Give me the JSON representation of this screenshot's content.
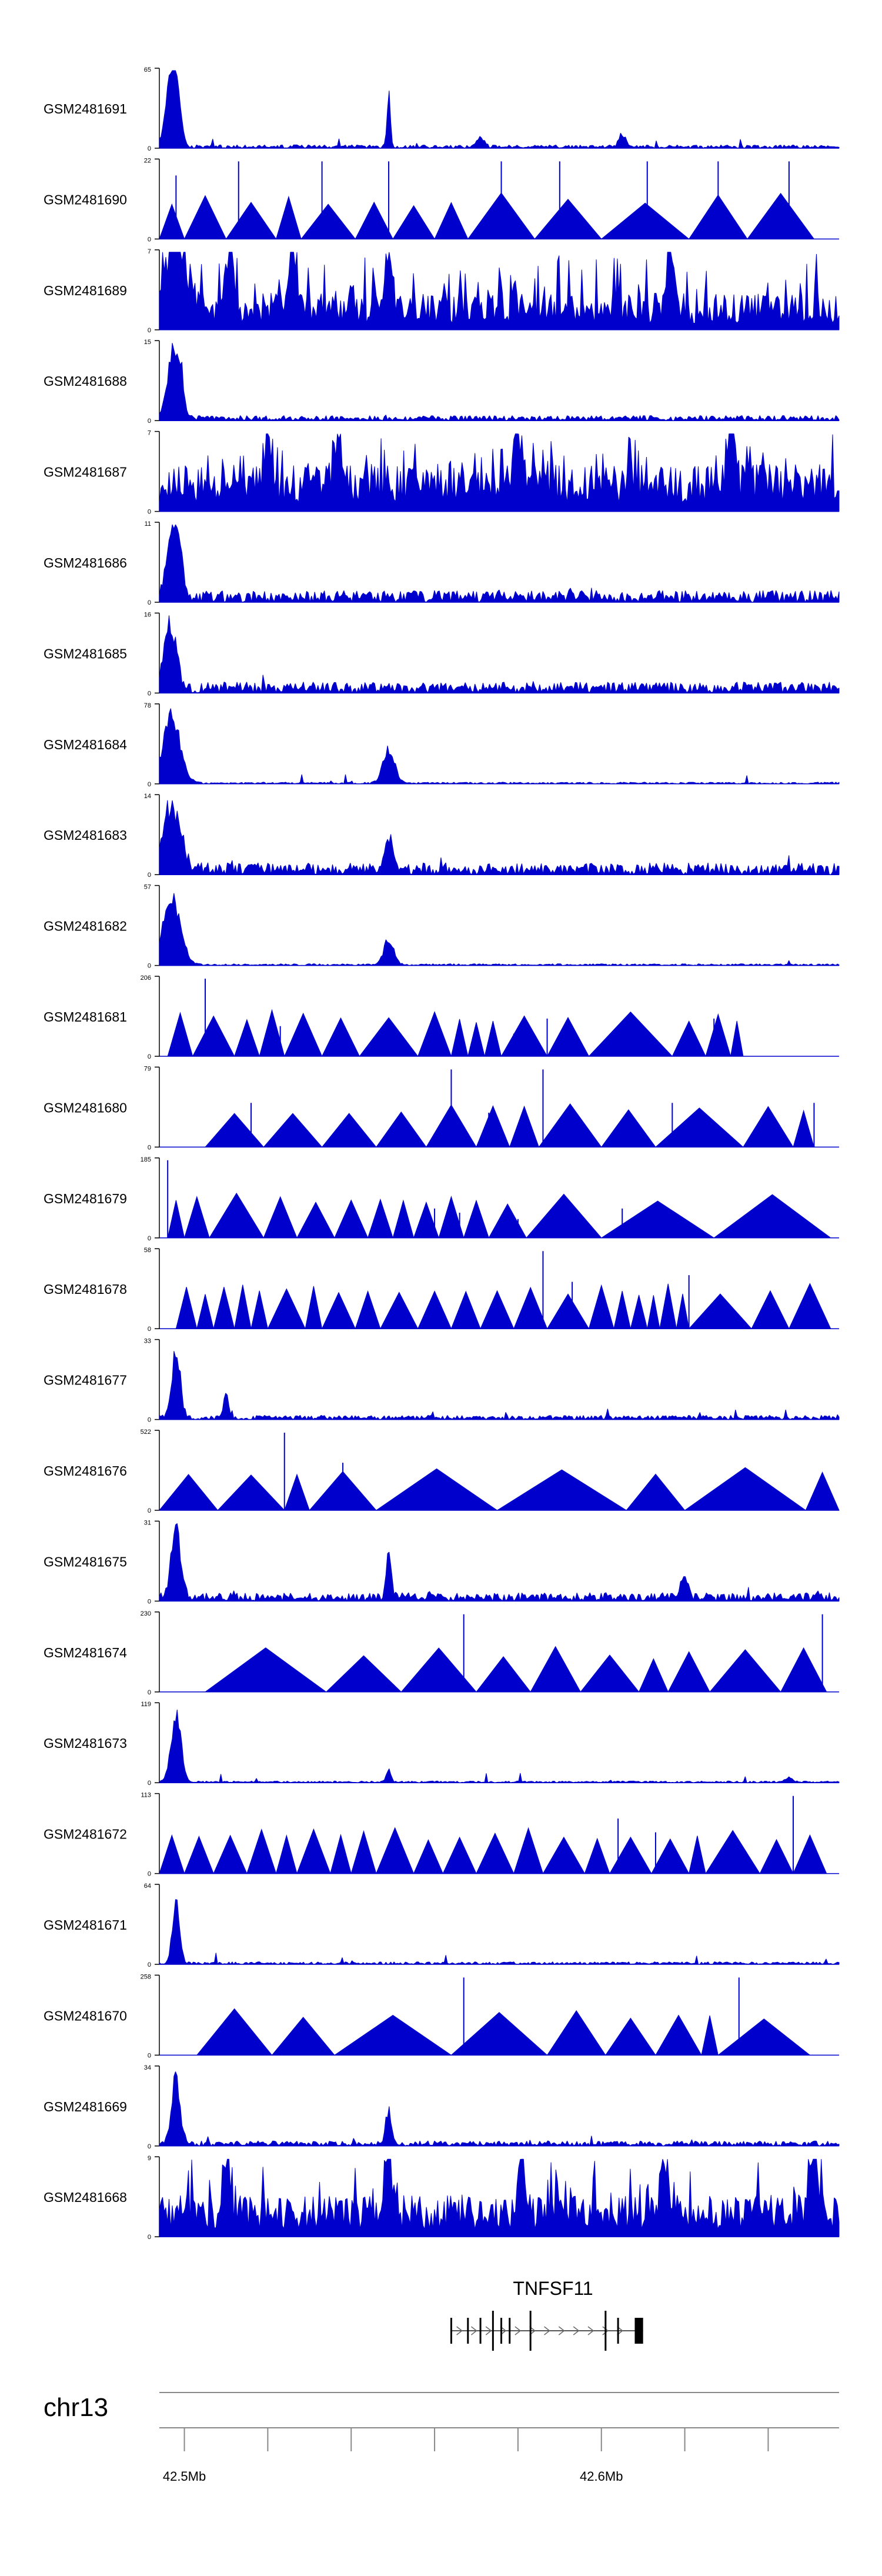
{
  "chart_data": {
    "type": "area",
    "title": "",
    "colors": {
      "signal": "#0000cc",
      "axis": "#000000",
      "ruler": "#888888"
    },
    "chromosome": "chr13",
    "x_axis": {
      "range_mb": [
        42.494,
        42.657
      ],
      "ticks_mb": [
        42.5,
        42.52,
        42.54,
        42.56,
        42.58,
        42.6,
        42.62,
        42.64
      ],
      "tick_labels": [
        {
          "value_mb": 42.5,
          "label": "42.5Mb"
        },
        {
          "value_mb": 42.6,
          "label": "42.6Mb"
        }
      ]
    },
    "gene": {
      "name": "TNFSF11",
      "start_mb": 42.564,
      "end_mb": 42.61,
      "exons_mb": [
        42.564,
        42.568,
        42.571,
        42.574,
        42.576,
        42.578,
        42.583,
        42.601,
        42.604,
        42.609
      ],
      "cds_end_mb": [
        42.608,
        42.61
      ],
      "strand": "+"
    },
    "tracks": [
      {
        "name": "GSM2481691",
        "ymax": 65,
        "ymax_label": "65",
        "ymin_label": "0",
        "style": "peak",
        "peaks": [
          [
            42.497,
            65,
            1.6
          ],
          [
            42.498,
            38,
            1.2
          ],
          [
            42.549,
            48,
            0.5
          ],
          [
            42.571,
            10,
            1.0
          ],
          [
            42.605,
            12,
            1.0
          ]
        ],
        "base": 0.04
      },
      {
        "name": "GSM2481690",
        "ymax": 22,
        "ymax_label": "22",
        "ymin_label": "0",
        "style": "sparse",
        "valleys_mb": [
          42.494,
          42.5,
          42.51,
          42.522,
          42.528,
          42.541,
          42.55,
          42.56,
          42.568,
          42.584,
          42.6,
          42.621,
          42.635,
          42.651
        ],
        "spikes": [
          [
            42.498,
            18
          ],
          [
            42.513,
            22
          ],
          [
            42.533,
            22
          ],
          [
            42.549,
            22
          ],
          [
            42.576,
            22
          ],
          [
            42.59,
            22
          ],
          [
            42.611,
            22
          ],
          [
            42.628,
            22
          ],
          [
            42.645,
            22
          ]
        ]
      },
      {
        "name": "GSM2481689",
        "ymax": 7,
        "ymax_label": "7",
        "ymin_label": "0",
        "style": "noisy",
        "peaks": [
          [
            42.498,
            7,
            3
          ],
          [
            42.511,
            7,
            1
          ],
          [
            42.526,
            7,
            1
          ],
          [
            42.549,
            6,
            1
          ],
          [
            42.617,
            6,
            1
          ]
        ],
        "base": 0.28
      },
      {
        "name": "GSM2481688",
        "ymax": 15,
        "ymax_label": "15",
        "ymin_label": "0",
        "style": "peak",
        "peaks": [
          [
            42.497,
            15,
            1.4
          ],
          [
            42.499,
            10,
            1.0
          ]
        ],
        "base": 0.06
      },
      {
        "name": "GSM2481687",
        "ymax": 7,
        "ymax_label": "7",
        "ymin_label": "0",
        "style": "noisy",
        "peaks": [
          [
            42.52,
            7,
            1
          ],
          [
            42.537,
            7,
            1
          ],
          [
            42.58,
            6,
            1
          ],
          [
            42.631,
            7,
            1
          ]
        ],
        "base": 0.36
      },
      {
        "name": "GSM2481686",
        "ymax": 11,
        "ymax_label": "11",
        "ymin_label": "0",
        "style": "peak",
        "peaks": [
          [
            42.497,
            11,
            1.4
          ],
          [
            42.499,
            6,
            1.0
          ]
        ],
        "base": 0.14
      },
      {
        "name": "GSM2481685",
        "ymax": 16,
        "ymax_label": "16",
        "ymin_label": "0",
        "style": "peak",
        "peaks": [
          [
            42.496,
            16,
            1.2
          ],
          [
            42.498,
            8,
            1.0
          ]
        ],
        "base": 0.13
      },
      {
        "name": "GSM2481684",
        "ymax": 78,
        "ymax_label": "78",
        "ymin_label": "0",
        "style": "peak",
        "peaks": [
          [
            42.497,
            78,
            2.4
          ],
          [
            42.549,
            40,
            1.6
          ]
        ],
        "base": 0.02
      },
      {
        "name": "GSM2481683",
        "ymax": 14,
        "ymax_label": "14",
        "ymin_label": "0",
        "style": "peak",
        "peaks": [
          [
            42.497,
            14,
            2.4
          ],
          [
            42.549,
            8,
            1.0
          ]
        ],
        "base": 0.14
      },
      {
        "name": "GSM2481682",
        "ymax": 57,
        "ymax_label": "57",
        "ymin_label": "0",
        "style": "peak",
        "peaks": [
          [
            42.497,
            57,
            2.4
          ],
          [
            42.549,
            22,
            1.4
          ]
        ],
        "base": 0.02
      },
      {
        "name": "GSM2481681",
        "ymax": 206,
        "ymax_label": "206",
        "ymin_label": "0",
        "style": "sparse",
        "valleys_mb": [
          42.496,
          42.502,
          42.512,
          42.518,
          42.524,
          42.533,
          42.542,
          42.556,
          42.564,
          42.568,
          42.572,
          42.576,
          42.587,
          42.597,
          42.617,
          42.625,
          42.631,
          42.634
        ],
        "spikes": [
          [
            42.505,
            206
          ],
          [
            42.523,
            80
          ],
          [
            42.579,
            60
          ],
          [
            42.587,
            100
          ],
          [
            42.627,
            100
          ]
        ]
      },
      {
        "name": "GSM2481680",
        "ymax": 79,
        "ymax_label": "79",
        "ymin_label": "0",
        "style": "sparse",
        "valleys_mb": [
          42.505,
          42.519,
          42.533,
          42.546,
          42.558,
          42.57,
          42.578,
          42.585,
          42.6,
          42.613,
          42.634,
          42.646,
          42.651
        ],
        "spikes": [
          [
            42.516,
            45
          ],
          [
            42.564,
            79
          ],
          [
            42.573,
            35
          ],
          [
            42.586,
            79
          ],
          [
            42.617,
            45
          ],
          [
            42.651,
            45
          ]
        ]
      },
      {
        "name": "GSM2481679",
        "ymax": 185,
        "ymax_label": "185",
        "ymin_label": "0",
        "style": "sparse",
        "valleys_mb": [
          42.496,
          42.5,
          42.506,
          42.519,
          42.527,
          42.536,
          42.544,
          42.55,
          42.555,
          42.561,
          42.567,
          42.573,
          42.582,
          42.6,
          42.627,
          42.655
        ],
        "spikes": [
          [
            42.496,
            185
          ],
          [
            42.524,
            50
          ],
          [
            42.547,
            50
          ],
          [
            42.56,
            70
          ],
          [
            42.566,
            60
          ],
          [
            42.58,
            45
          ],
          [
            42.605,
            70
          ]
        ]
      },
      {
        "name": "GSM2481678",
        "ymax": 58,
        "ymax_label": "58",
        "ymin_label": "0",
        "style": "sparse",
        "valleys_mb": [
          42.498,
          42.503,
          42.507,
          42.512,
          42.516,
          42.52,
          42.529,
          42.533,
          42.541,
          42.547,
          42.556,
          42.564,
          42.571,
          42.579,
          42.587,
          42.597,
          42.603,
          42.607,
          42.611,
          42.614,
          42.618,
          42.621,
          42.636,
          42.645,
          42.655
        ],
        "spikes": [
          [
            42.586,
            58
          ],
          [
            42.593,
            35
          ],
          [
            42.621,
            40
          ]
        ]
      },
      {
        "name": "GSM2481677",
        "ymax": 33,
        "ymax_label": "33",
        "ymin_label": "0",
        "style": "peak",
        "peaks": [
          [
            42.498,
            33,
            1.2
          ],
          [
            42.51,
            13,
            0.6
          ]
        ],
        "base": 0.05
      },
      {
        "name": "GSM2481676",
        "ymax": 522,
        "ymax_label": "522",
        "ymin_label": "0",
        "style": "sparse",
        "valleys_mb": [
          42.494,
          42.508,
          42.524,
          42.53,
          42.546,
          42.575,
          42.606,
          42.62,
          42.649,
          42.657
        ],
        "spikes": [
          [
            42.524,
            522
          ],
          [
            42.538,
            320
          ]
        ]
      },
      {
        "name": "GSM2481675",
        "ymax": 31,
        "ymax_label": "31",
        "ymin_label": "0",
        "style": "peak",
        "peaks": [
          [
            42.498,
            31,
            1.4
          ],
          [
            42.549,
            18,
            0.8
          ],
          [
            42.62,
            12,
            1.0
          ]
        ],
        "base": 0.1
      },
      {
        "name": "GSM2481674",
        "ymax": 230,
        "ymax_label": "230",
        "ymin_label": "0",
        "style": "sparse",
        "valleys_mb": [
          42.505,
          42.534,
          42.552,
          42.57,
          42.583,
          42.595,
          42.609,
          42.616,
          42.626,
          42.643,
          42.654
        ],
        "spikes": [
          [
            42.567,
            230
          ],
          [
            42.653,
            230
          ]
        ]
      },
      {
        "name": "GSM2481673",
        "ymax": 119,
        "ymax_label": "119",
        "ymin_label": "0",
        "style": "peak",
        "peaks": [
          [
            42.498,
            119,
            1.4
          ],
          [
            42.549,
            25,
            0.6
          ],
          [
            42.645,
            8,
            1.0
          ]
        ],
        "base": 0.02
      },
      {
        "name": "GSM2481672",
        "ymax": 113,
        "ymax_label": "113",
        "ymin_label": "0",
        "style": "sparse",
        "valleys_mb": [
          42.494,
          42.5,
          42.507,
          42.515,
          42.522,
          42.527,
          42.535,
          42.54,
          42.546,
          42.555,
          42.562,
          42.57,
          42.579,
          42.586,
          42.596,
          42.602,
          42.612,
          42.621,
          42.625,
          42.638,
          42.646,
          42.654
        ],
        "spikes": [
          [
            42.604,
            80
          ],
          [
            42.613,
            60
          ],
          [
            42.646,
            113
          ]
        ]
      },
      {
        "name": "GSM2481671",
        "ymax": 64,
        "ymax_label": "64",
        "ymin_label": "0",
        "style": "peak",
        "peaks": [
          [
            42.498,
            64,
            1.0
          ]
        ],
        "base": 0.03
      },
      {
        "name": "GSM2481670",
        "ymax": 258,
        "ymax_label": "258",
        "ymin_label": "0",
        "style": "sparse",
        "valleys_mb": [
          42.503,
          42.521,
          42.536,
          42.564,
          42.587,
          42.601,
          42.613,
          42.624,
          42.628,
          42.65
        ],
        "spikes": [
          [
            42.567,
            258
          ],
          [
            42.633,
            258
          ]
        ]
      },
      {
        "name": "GSM2481669",
        "ymax": 34,
        "ymax_label": "34",
        "ymin_label": "0",
        "style": "peak",
        "peaks": [
          [
            42.498,
            34,
            1.2
          ],
          [
            42.549,
            18,
            0.8
          ]
        ],
        "base": 0.06
      },
      {
        "name": "GSM2481668",
        "ymax": 9,
        "ymax_label": "9",
        "ymin_label": "0",
        "style": "noisy",
        "peaks": [
          [
            42.51,
            9,
            1
          ],
          [
            42.549,
            9,
            1
          ],
          [
            42.581,
            9,
            1
          ],
          [
            42.615,
            9,
            1
          ],
          [
            42.651,
            9,
            1
          ]
        ],
        "base": 0.32
      }
    ]
  }
}
